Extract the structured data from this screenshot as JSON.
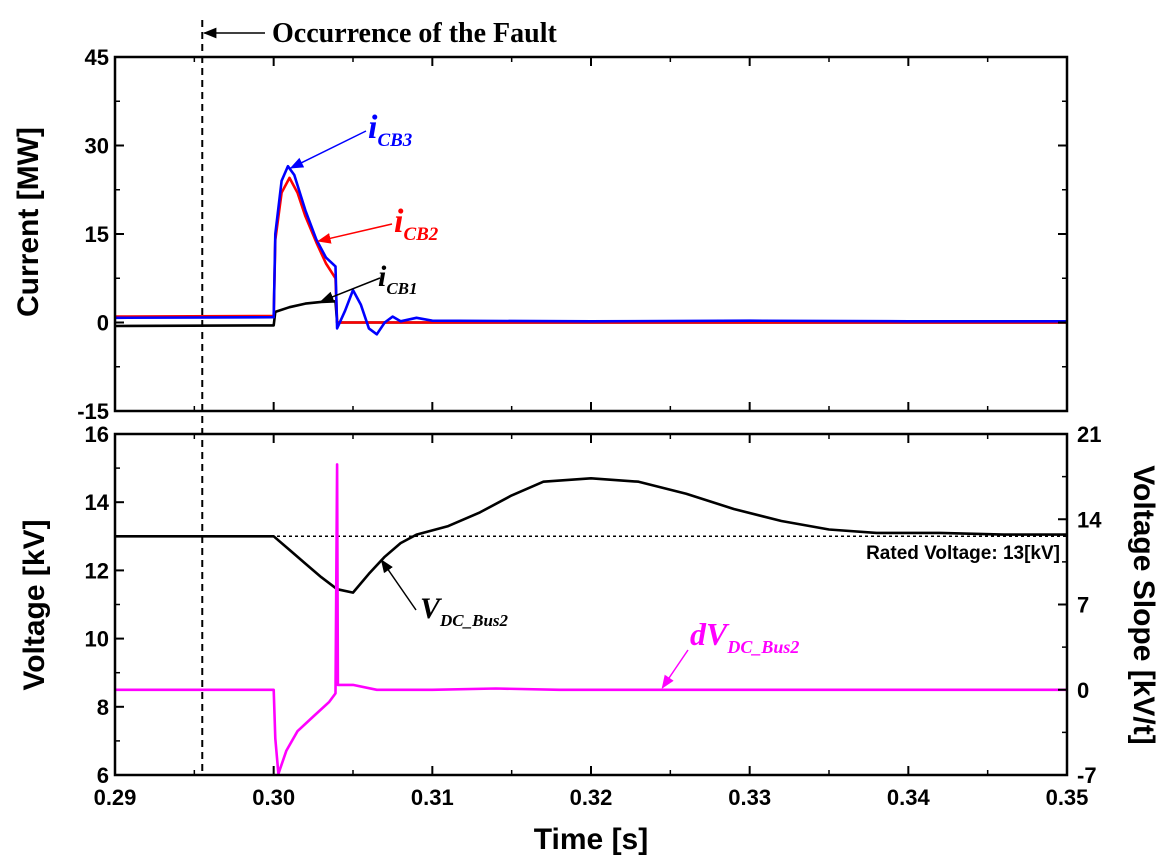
{
  "chart_data": [
    {
      "type": "line",
      "panel": "top",
      "ylabel": "Current [MW]",
      "xlim": [
        0.29,
        0.35
      ],
      "ylim": [
        -15,
        45
      ],
      "xticks": [
        "0.29",
        "0.30",
        "0.31",
        "0.32",
        "0.33",
        "0.34",
        "0.35"
      ],
      "yticks": [
        "-15",
        "0",
        "15",
        "30",
        "45"
      ],
      "annotations": [
        "Occurrence of the Fault"
      ],
      "fault_time": 0.2955,
      "series": [
        {
          "name": "iCB3",
          "label_main": "i",
          "label_sub": "CB3",
          "color": "#0000ff",
          "points": [
            [
              0.29,
              0.8
            ],
            [
              0.3,
              0.9
            ],
            [
              0.3001,
              15
            ],
            [
              0.3005,
              24
            ],
            [
              0.3009,
              26.5
            ],
            [
              0.3013,
              25
            ],
            [
              0.302,
              19
            ],
            [
              0.3027,
              14
            ],
            [
              0.3033,
              11
            ],
            [
              0.3039,
              9.5
            ],
            [
              0.304,
              -1
            ],
            [
              0.3045,
              2
            ],
            [
              0.305,
              5.5
            ],
            [
              0.3055,
              3
            ],
            [
              0.306,
              -1
            ],
            [
              0.3065,
              -2
            ],
            [
              0.307,
              0
            ],
            [
              0.3075,
              1
            ],
            [
              0.308,
              0.2
            ],
            [
              0.309,
              0.8
            ],
            [
              0.31,
              0.3
            ],
            [
              0.32,
              0.2
            ],
            [
              0.33,
              0.3
            ],
            [
              0.34,
              0.2
            ],
            [
              0.35,
              0.2
            ]
          ]
        },
        {
          "name": "iCB2",
          "label_main": "i",
          "label_sub": "CB2",
          "color": "#ff0000",
          "points": [
            [
              0.29,
              1.0
            ],
            [
              0.3,
              1.1
            ],
            [
              0.3001,
              14
            ],
            [
              0.3005,
              22
            ],
            [
              0.301,
              24.5
            ],
            [
              0.3015,
              22
            ],
            [
              0.302,
              18
            ],
            [
              0.3027,
              13.5
            ],
            [
              0.3033,
              10
            ],
            [
              0.3039,
              7.5
            ],
            [
              0.304,
              0
            ],
            [
              0.35,
              0
            ]
          ]
        },
        {
          "name": "iCB1",
          "label_main": "i",
          "label_sub": "CB1",
          "color": "#000000",
          "points": [
            [
              0.29,
              -0.6
            ],
            [
              0.3,
              -0.5
            ],
            [
              0.3001,
              1.8
            ],
            [
              0.301,
              2.6
            ],
            [
              0.302,
              3.2
            ],
            [
              0.303,
              3.5
            ],
            [
              0.3039,
              3.6
            ],
            [
              0.304,
              0
            ],
            [
              0.35,
              0
            ]
          ]
        }
      ]
    },
    {
      "type": "line",
      "panel": "bottom",
      "xlabel": "Time [s]",
      "ylabel": "Voltage [kV]",
      "ylabel_right": "Voltage Slope [kV/t]",
      "xlim": [
        0.29,
        0.35
      ],
      "ylim": [
        6,
        16
      ],
      "ylim_right": [
        -7,
        21
      ],
      "xticks": [
        "0.29",
        "0.30",
        "0.31",
        "0.32",
        "0.33",
        "0.34",
        "0.35"
      ],
      "yticks": [
        "6",
        "8",
        "10",
        "12",
        "14",
        "16"
      ],
      "yticks_right": [
        "-7",
        "0",
        "7",
        "14",
        "21"
      ],
      "reference_line": {
        "y": 13,
        "label": "Rated Voltage: 13[kV]"
      },
      "series": [
        {
          "name": "VDC_Bus2",
          "label_main": "V",
          "label_sub": "DC_Bus2",
          "color": "#000000",
          "axis": "left",
          "points": [
            [
              0.29,
              13.0
            ],
            [
              0.3,
              13.0
            ],
            [
              0.301,
              12.6
            ],
            [
              0.302,
              12.2
            ],
            [
              0.303,
              11.8
            ],
            [
              0.304,
              11.45
            ],
            [
              0.305,
              11.35
            ],
            [
              0.306,
              11.9
            ],
            [
              0.307,
              12.4
            ],
            [
              0.308,
              12.8
            ],
            [
              0.309,
              13.05
            ],
            [
              0.311,
              13.3
            ],
            [
              0.313,
              13.7
            ],
            [
              0.315,
              14.2
            ],
            [
              0.317,
              14.6
            ],
            [
              0.32,
              14.7
            ],
            [
              0.323,
              14.6
            ],
            [
              0.326,
              14.25
            ],
            [
              0.329,
              13.8
            ],
            [
              0.332,
              13.45
            ],
            [
              0.335,
              13.2
            ],
            [
              0.338,
              13.1
            ],
            [
              0.342,
              13.1
            ],
            [
              0.346,
              13.05
            ],
            [
              0.35,
              13.05
            ]
          ]
        },
        {
          "name": "dVDC_Bus2",
          "label_main": "dV",
          "label_sub": "DC_Bus2",
          "color": "#ff00ff",
          "axis": "right",
          "points": [
            [
              0.29,
              0
            ],
            [
              0.3,
              0
            ],
            [
              0.3001,
              -4
            ],
            [
              0.3003,
              -6.9
            ],
            [
              0.3008,
              -5
            ],
            [
              0.3015,
              -3.4
            ],
            [
              0.3025,
              -2.2
            ],
            [
              0.3035,
              -1
            ],
            [
              0.3039,
              -0.3
            ],
            [
              0.304,
              18.5
            ],
            [
              0.30405,
              0.4
            ],
            [
              0.305,
              0.4
            ],
            [
              0.3065,
              0
            ],
            [
              0.31,
              0
            ],
            [
              0.314,
              0.1
            ],
            [
              0.318,
              0
            ],
            [
              0.35,
              0
            ]
          ]
        }
      ]
    }
  ]
}
